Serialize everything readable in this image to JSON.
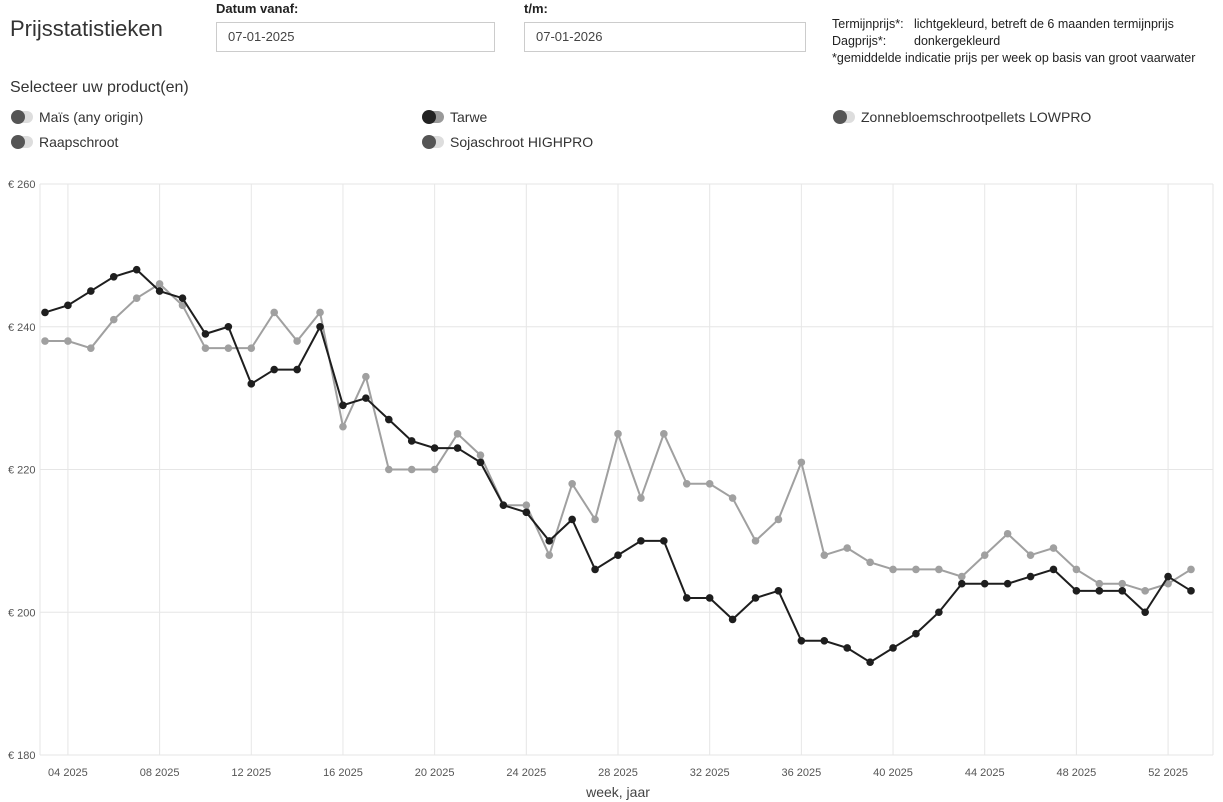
{
  "title": "Prijsstatistieken",
  "filters": {
    "from_label": "Datum vanaf:",
    "from_value": "07-01-2025",
    "to_label": "t/m:",
    "to_value": "07-01-2026"
  },
  "legend": {
    "term_key": "Termijnprijs*:",
    "term_val": "lichtgekleurd, betreft de 6 maanden termijnprijs",
    "day_key": "Dagprijs*:",
    "day_val": "donkergekleurd",
    "note": "*gemiddelde indicatie prijs per week op basis van groot vaarwater"
  },
  "select_label": "Selecteer uw product(en)",
  "products": [
    {
      "label": "Maïs (any origin)",
      "on": false
    },
    {
      "label": "Tarwe",
      "on": true
    },
    {
      "label": "Zonnebloemschrootpellets LOWPRO",
      "on": false
    },
    {
      "label": "Raapschroot",
      "on": false
    },
    {
      "label": "Sojaschroot HIGHPRO",
      "on": false
    }
  ],
  "chart_data": {
    "type": "line",
    "xlabel": "week, jaar",
    "ylabel": "",
    "ylim": [
      180,
      260
    ],
    "xlim": [
      3,
      53
    ],
    "yticks": [
      {
        "v": 260,
        "label": "€ 260"
      },
      {
        "v": 240,
        "label": "€ 240"
      },
      {
        "v": 220,
        "label": "€ 220"
      },
      {
        "v": 200,
        "label": "€ 200"
      },
      {
        "v": 180,
        "label": "€ 180"
      }
    ],
    "xticks": [
      {
        "v": 4,
        "label": "04 2025"
      },
      {
        "v": 8,
        "label": "08 2025"
      },
      {
        "v": 12,
        "label": "12 2025"
      },
      {
        "v": 16,
        "label": "16 2025"
      },
      {
        "v": 20,
        "label": "20 2025"
      },
      {
        "v": 24,
        "label": "24 2025"
      },
      {
        "v": 28,
        "label": "28 2025"
      },
      {
        "v": 32,
        "label": "32 2025"
      },
      {
        "v": 36,
        "label": "36 2025"
      },
      {
        "v": 40,
        "label": "40 2025"
      },
      {
        "v": 44,
        "label": "44 2025"
      },
      {
        "v": 48,
        "label": "48 2025"
      },
      {
        "v": 52,
        "label": "52 2025"
      }
    ],
    "grid": true,
    "x": [
      3,
      4,
      5,
      6,
      7,
      8,
      9,
      10,
      11,
      12,
      13,
      14,
      15,
      16,
      17,
      18,
      19,
      20,
      21,
      22,
      23,
      24,
      25,
      26,
      27,
      28,
      29,
      30,
      31,
      32,
      33,
      34,
      35,
      36,
      37,
      38,
      39,
      40,
      41,
      42,
      43,
      44,
      45,
      46,
      47,
      48,
      49,
      50,
      51,
      52,
      53
    ],
    "series": [
      {
        "name": "Tarwe termijnprijs",
        "color": "#a0a0a0",
        "values": [
          238,
          238,
          237,
          241,
          244,
          246,
          243,
          237,
          237,
          237,
          242,
          238,
          242,
          226,
          233,
          220,
          220,
          220,
          225,
          222,
          215,
          215,
          208,
          218,
          213,
          225,
          216,
          225,
          218,
          218,
          216,
          210,
          213,
          221,
          208,
          209,
          207,
          206,
          206,
          206,
          205,
          208,
          211,
          208,
          209,
          206,
          204,
          204,
          203,
          204,
          206
        ]
      },
      {
        "name": "Tarwe dagprijs",
        "color": "#1e1e1e",
        "values": [
          242,
          243,
          245,
          247,
          248,
          245,
          244,
          239,
          240,
          232,
          234,
          234,
          240,
          229,
          230,
          227,
          224,
          223,
          223,
          221,
          215,
          214,
          210,
          213,
          206,
          208,
          210,
          210,
          202,
          202,
          199,
          202,
          203,
          196,
          196,
          195,
          193,
          195,
          197,
          200,
          204,
          204,
          204,
          205,
          206,
          203,
          203,
          203,
          200,
          205,
          203
        ]
      }
    ]
  }
}
